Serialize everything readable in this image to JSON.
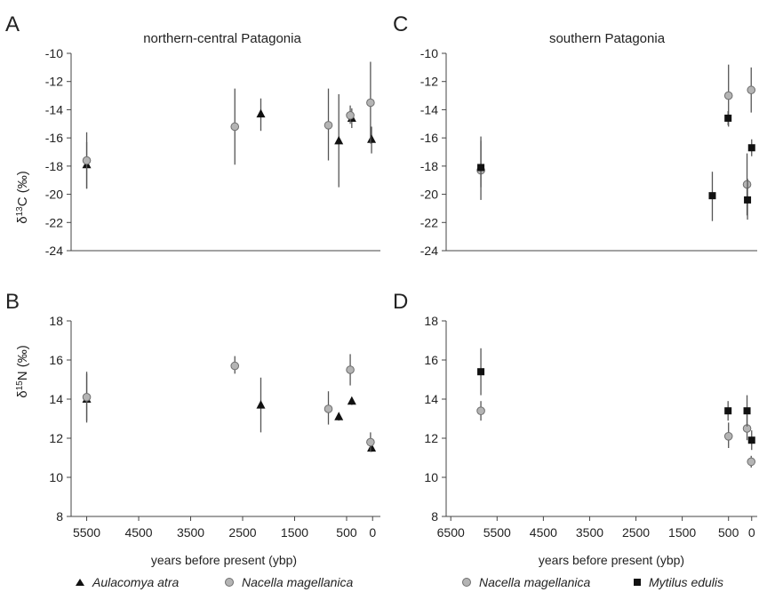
{
  "figure": {
    "panels": [
      {
        "letter": "A",
        "title": "northern-central Patagonia"
      },
      {
        "letter": "B",
        "title": ""
      },
      {
        "letter": "C",
        "title": "southern Patagonia"
      },
      {
        "letter": "D",
        "title": ""
      }
    ],
    "xlabel_left": "years before present (ybp)",
    "xlabel_right": "years before present (ybp)",
    "legend_left": [
      {
        "marker": "triangle",
        "label": "Aulacomya atra"
      },
      {
        "marker": "circle",
        "label": "Nacella magellanica"
      }
    ],
    "legend_right": [
      {
        "marker": "circle",
        "label": "Nacella magellanica"
      },
      {
        "marker": "square",
        "label": "Mytilus edulis"
      }
    ]
  },
  "colors": {
    "triangle": "#111111",
    "square": "#111111",
    "circle_fill": "#b4b4b4",
    "circle_stroke": "#6e6e6e",
    "errorbar": "#555555",
    "axis": "#444444"
  },
  "chart_data": [
    {
      "panel": "A",
      "type": "scatter",
      "title": "northern-central Patagonia",
      "xlabel": "",
      "ylabel": "δ13C (‰)",
      "xlim": [
        5800,
        -150
      ],
      "x_reversed": true,
      "ylim": [
        -24,
        -10
      ],
      "xticks": [],
      "yticks": [
        -10,
        -12,
        -14,
        -16,
        -18,
        -20,
        -22,
        -24
      ],
      "series": [
        {
          "name": "Aulacomya atra",
          "marker": "triangle",
          "points": [
            {
              "x": 5500,
              "y": -17.9,
              "low": -19.6,
              "high": -16.3
            },
            {
              "x": 2150,
              "y": -14.3,
              "low": -15.5,
              "high": -13.2
            },
            {
              "x": 650,
              "y": -16.2,
              "low": -19.5,
              "high": -12.9
            },
            {
              "x": 400,
              "y": -14.6,
              "low": -15.3,
              "high": -13.9
            },
            {
              "x": 20,
              "y": -16.1,
              "low": -17.1,
              "high": -15.2
            }
          ]
        },
        {
          "name": "Nacella magellanica",
          "marker": "circle",
          "points": [
            {
              "x": 5500,
              "y": -17.6,
              "low": -19.6,
              "high": -15.6
            },
            {
              "x": 2650,
              "y": -15.2,
              "low": -17.9,
              "high": -12.5
            },
            {
              "x": 850,
              "y": -15.1,
              "low": -17.6,
              "high": -12.5
            },
            {
              "x": 430,
              "y": -14.4,
              "low": -15.0,
              "high": -13.7
            },
            {
              "x": 40,
              "y": -13.5,
              "low": -16.4,
              "high": -10.6
            }
          ]
        }
      ]
    },
    {
      "panel": "B",
      "type": "scatter",
      "title": "",
      "xlabel": "years before present (ybp)",
      "ylabel": "δ15N (‰)",
      "xlim": [
        5800,
        -150
      ],
      "x_reversed": true,
      "ylim": [
        8,
        18
      ],
      "xticks": [
        5500,
        4500,
        3500,
        2500,
        1500,
        500,
        0
      ],
      "yticks": [
        18,
        16,
        14,
        12,
        10,
        8
      ],
      "series": [
        {
          "name": "Aulacomya atra",
          "marker": "triangle",
          "points": [
            {
              "x": 5500,
              "y": 14.0,
              "low": 12.8,
              "high": 15.4
            },
            {
              "x": 2150,
              "y": 13.7,
              "low": 12.3,
              "high": 15.1
            },
            {
              "x": 650,
              "y": 13.1,
              "low": 12.9,
              "high": 13.3
            },
            {
              "x": 400,
              "y": 13.9,
              "low": 13.7,
              "high": 14.1
            },
            {
              "x": 20,
              "y": 11.5,
              "low": 11.3,
              "high": 11.7
            }
          ]
        },
        {
          "name": "Nacella magellanica",
          "marker": "circle",
          "points": [
            {
              "x": 5500,
              "y": 14.1,
              "low": 12.9,
              "high": 15.3
            },
            {
              "x": 2650,
              "y": 15.7,
              "low": 15.3,
              "high": 16.2
            },
            {
              "x": 850,
              "y": 13.5,
              "low": 12.7,
              "high": 14.4
            },
            {
              "x": 430,
              "y": 15.5,
              "low": 14.7,
              "high": 16.3
            },
            {
              "x": 40,
              "y": 11.8,
              "low": 11.3,
              "high": 12.3
            }
          ]
        }
      ]
    },
    {
      "panel": "C",
      "type": "scatter",
      "title": "southern Patagonia",
      "xlabel": "",
      "ylabel": "",
      "xlim": [
        6600,
        -120
      ],
      "x_reversed": true,
      "ylim": [
        -24,
        -10
      ],
      "xticks": [],
      "yticks": [
        -10,
        -12,
        -14,
        -16,
        -18,
        -20,
        -22,
        -24
      ],
      "series": [
        {
          "name": "Nacella magellanica",
          "marker": "circle",
          "points": [
            {
              "x": 5850,
              "y": -18.3,
              "low": -20.4,
              "high": -16.2
            },
            {
              "x": 500,
              "y": -13.0,
              "low": -15.2,
              "high": -10.8
            },
            {
              "x": 100,
              "y": -19.3,
              "low": -21.5,
              "high": -17.1
            },
            {
              "x": 10,
              "y": -12.6,
              "low": -14.2,
              "high": -11.0
            }
          ]
        },
        {
          "name": "Mytilus edulis",
          "marker": "square",
          "points": [
            {
              "x": 5850,
              "y": -18.1,
              "low": -19.5,
              "high": -15.9
            },
            {
              "x": 850,
              "y": -20.1,
              "low": -21.9,
              "high": -18.4
            },
            {
              "x": 510,
              "y": -14.6,
              "low": -15.1,
              "high": -14.1
            },
            {
              "x": 90,
              "y": -20.4,
              "low": -21.8,
              "high": -18.9
            },
            {
              "x": 0,
              "y": -16.7,
              "low": -17.3,
              "high": -16.1
            }
          ]
        }
      ]
    },
    {
      "panel": "D",
      "type": "scatter",
      "title": "",
      "xlabel": "years before present (ybp)",
      "ylabel": "",
      "xlim": [
        6600,
        -120
      ],
      "x_reversed": true,
      "ylim": [
        8,
        18
      ],
      "xticks": [
        6500,
        5500,
        4500,
        3500,
        2500,
        1500,
        500,
        0
      ],
      "yticks": [
        18,
        16,
        14,
        12,
        10,
        8
      ],
      "series": [
        {
          "name": "Nacella magellanica",
          "marker": "circle",
          "points": [
            {
              "x": 5850,
              "y": 13.4,
              "low": 12.9,
              "high": 13.9
            },
            {
              "x": 500,
              "y": 12.1,
              "low": 11.5,
              "high": 12.8
            },
            {
              "x": 100,
              "y": 12.5,
              "low": 11.9,
              "high": 13.2
            },
            {
              "x": 10,
              "y": 10.8,
              "low": 10.5,
              "high": 11.1
            }
          ]
        },
        {
          "name": "Mytilus edulis",
          "marker": "square",
          "points": [
            {
              "x": 5850,
              "y": 15.4,
              "low": 14.2,
              "high": 16.6
            },
            {
              "x": 510,
              "y": 13.4,
              "low": 12.9,
              "high": 13.9
            },
            {
              "x": 100,
              "y": 13.4,
              "low": 12.6,
              "high": 14.2
            },
            {
              "x": 0,
              "y": 11.9,
              "low": 11.4,
              "high": 12.4
            }
          ]
        }
      ]
    }
  ]
}
